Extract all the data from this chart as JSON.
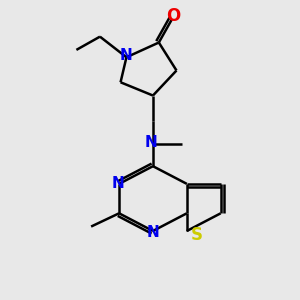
{
  "bg_color": "#e8e8e8",
  "bond_color": "#000000",
  "N_color": "#0000ee",
  "O_color": "#ee0000",
  "S_color": "#cccc00",
  "line_width": 1.8,
  "font_size": 11,
  "figsize": [
    3.0,
    3.0
  ],
  "dpi": 100,
  "xlim": [
    0,
    10
  ],
  "ylim": [
    0,
    10
  ]
}
